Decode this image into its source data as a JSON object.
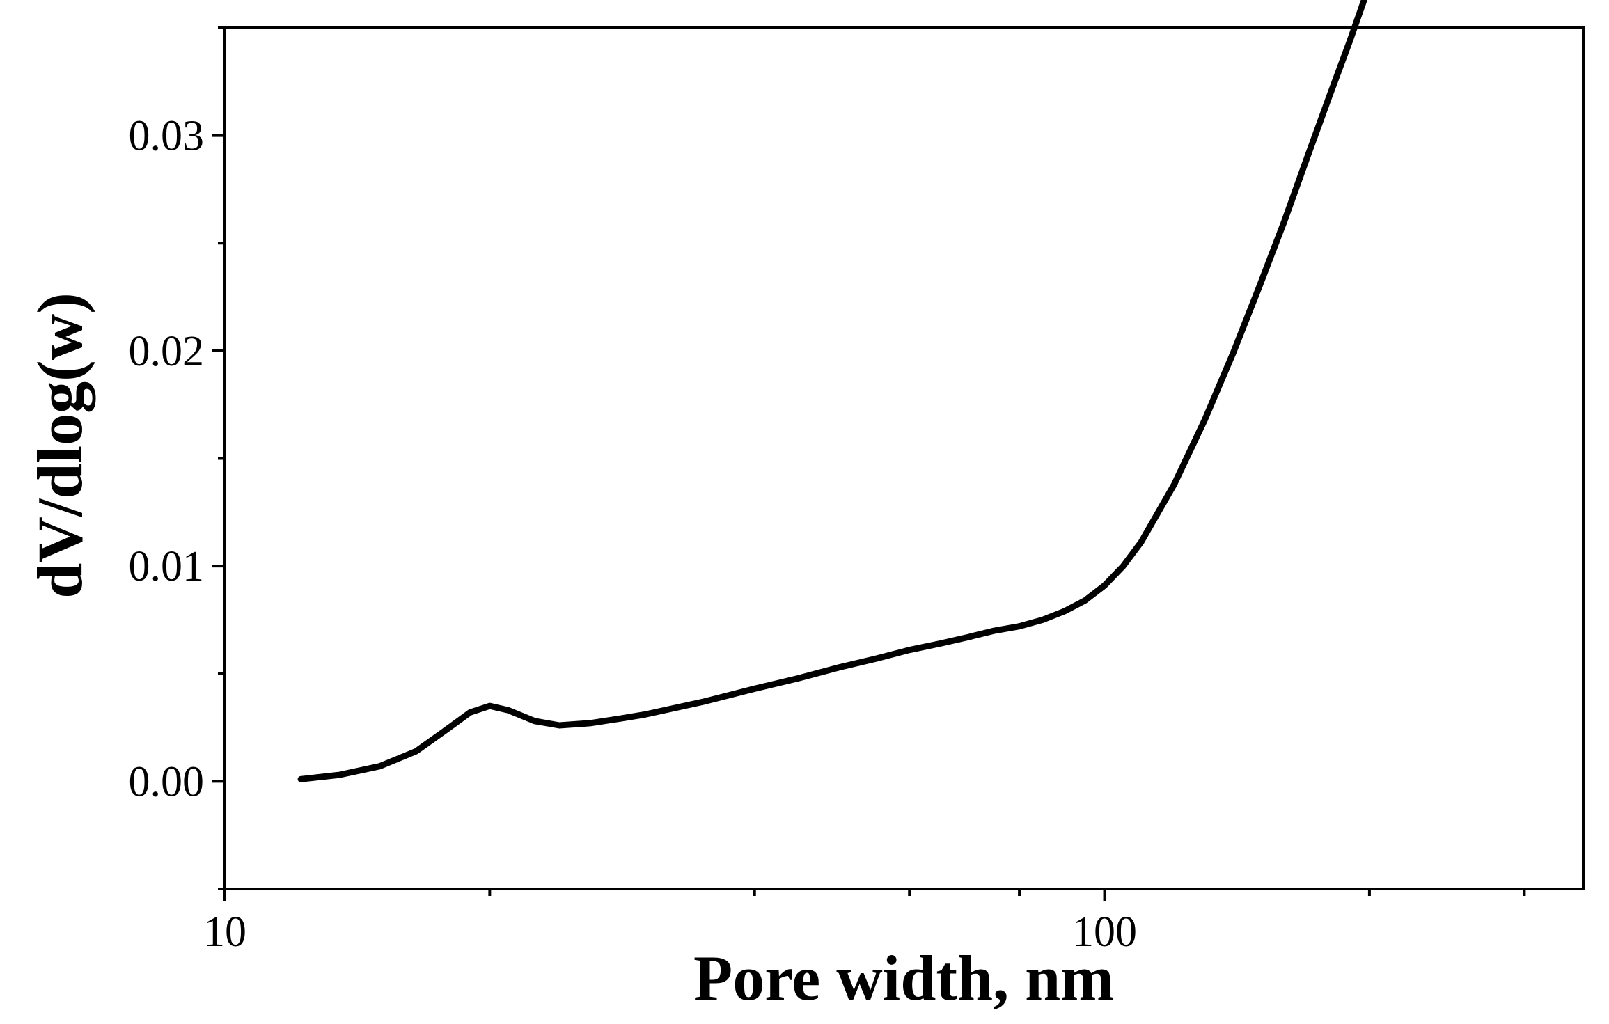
{
  "chart_data": {
    "type": "line",
    "xlabel": "Pore width, nm",
    "ylabel": "dV/dlog(w)",
    "xscale": "log",
    "xlim": [
      10,
      350
    ],
    "ylim": [
      -0.005,
      0.035
    ],
    "x_ticks": [
      10,
      100
    ],
    "x_tick_labels": [
      "10",
      "100"
    ],
    "y_ticks": [
      0.0,
      0.01,
      0.02,
      0.03
    ],
    "y_tick_labels": [
      "0.00",
      "0.01",
      "0.02",
      "0.03"
    ],
    "grid": false,
    "legend": "none",
    "line_color": "#000000",
    "series": [
      {
        "x": [
          12.2,
          13.5,
          15,
          16.5,
          18,
          19,
          20,
          21,
          22.5,
          24,
          26,
          28,
          30,
          35,
          40,
          45,
          50,
          55,
          60,
          65,
          70,
          75,
          80,
          85,
          90,
          95,
          100,
          105,
          110,
          120,
          130,
          140,
          150,
          160,
          170,
          180,
          190,
          200
        ],
        "y": [
          0.0001,
          0.0003,
          0.0007,
          0.0014,
          0.0025,
          0.0032,
          0.0035,
          0.0033,
          0.0028,
          0.0026,
          0.0027,
          0.0029,
          0.0031,
          0.0037,
          0.0043,
          0.0048,
          0.0053,
          0.0057,
          0.0061,
          0.0064,
          0.0067,
          0.007,
          0.0072,
          0.0075,
          0.0079,
          0.0084,
          0.0091,
          0.01,
          0.0111,
          0.0138,
          0.0168,
          0.0199,
          0.023,
          0.026,
          0.029,
          0.0318,
          0.0344,
          0.037
        ]
      }
    ]
  }
}
